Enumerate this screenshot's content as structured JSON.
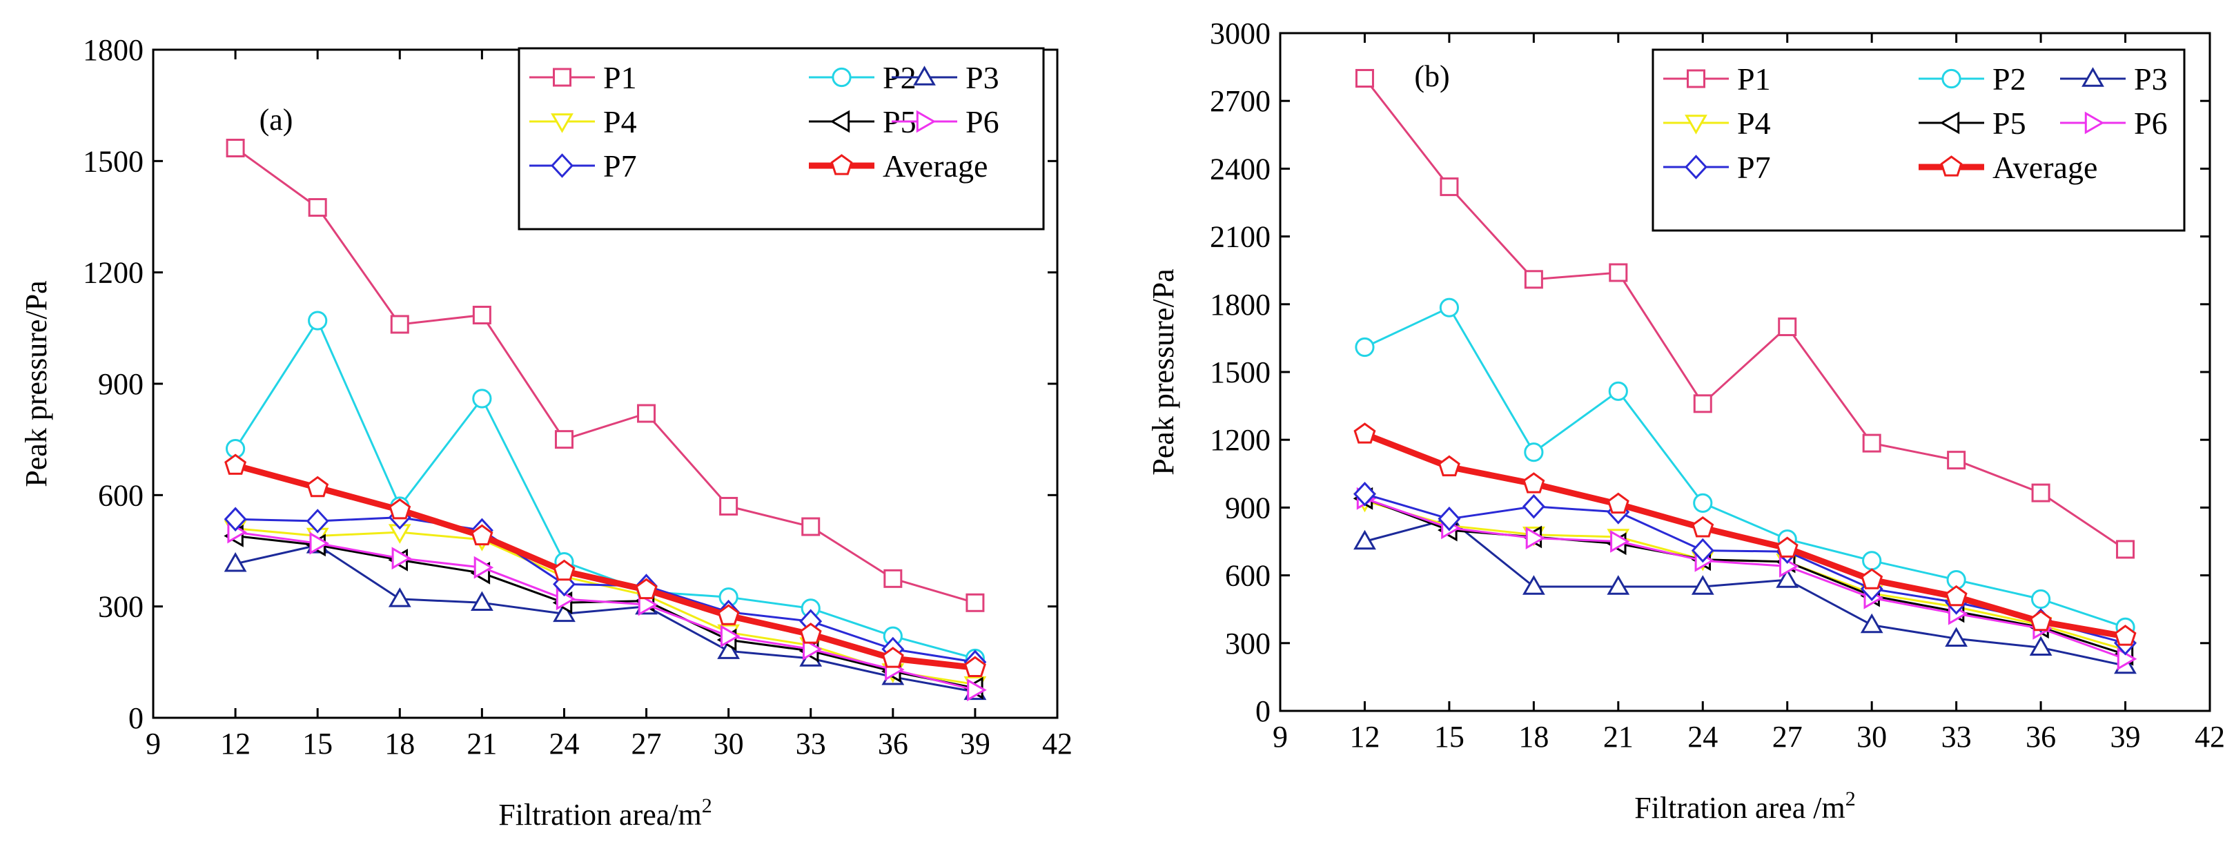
{
  "chart_data": [
    {
      "type": "line",
      "panel_label": "(a)",
      "xlabel": "Filtration area/m",
      "xlabel_sup": "2",
      "ylabel": "Peak pressure/Pa",
      "xlim": [
        9,
        42
      ],
      "ylim": [
        0,
        1800
      ],
      "xticks": [
        "9",
        "12",
        "15",
        "18",
        "21",
        "24",
        "27",
        "30",
        "33",
        "36",
        "39",
        "42"
      ],
      "yticks": [
        "0",
        "300",
        "600",
        "900",
        "1200",
        "1500",
        "1800"
      ],
      "legend_position": "top-right",
      "x": [
        12,
        15,
        18,
        21,
        24,
        27,
        30,
        33,
        36,
        39
      ],
      "series": [
        {
          "name": "P1",
          "color": "#e0407a",
          "marker": "square",
          "values": [
            1535,
            1375,
            1060,
            1085,
            750,
            820,
            570,
            515,
            375,
            310
          ]
        },
        {
          "name": "P2",
          "color": "#22d4e6",
          "marker": "circle",
          "values": [
            725,
            1070,
            570,
            860,
            420,
            340,
            325,
            295,
            220,
            160
          ]
        },
        {
          "name": "P3",
          "color": "#1c2a9a",
          "marker": "triangle-up",
          "values": [
            415,
            465,
            320,
            310,
            280,
            300,
            180,
            160,
            110,
            70
          ]
        },
        {
          "name": "P4",
          "color": "#f2ec14",
          "marker": "triangle-down",
          "values": [
            510,
            490,
            500,
            480,
            380,
            330,
            230,
            195,
            125,
            90
          ]
        },
        {
          "name": "P5",
          "color": "#000000",
          "marker": "triangle-left",
          "values": [
            490,
            465,
            425,
            390,
            310,
            315,
            210,
            180,
            125,
            80
          ]
        },
        {
          "name": "P6",
          "color": "#ee33ee",
          "marker": "triangle-right",
          "values": [
            500,
            470,
            430,
            405,
            320,
            305,
            220,
            185,
            130,
            75
          ]
        },
        {
          "name": "P7",
          "color": "#2a2ad6",
          "marker": "diamond",
          "values": [
            535,
            530,
            540,
            505,
            360,
            355,
            285,
            260,
            185,
            150
          ]
        },
        {
          "name": "Average",
          "color": "#ee1c1c",
          "marker": "pentagon",
          "thick": true,
          "values": [
            680,
            620,
            560,
            490,
            395,
            345,
            275,
            225,
            160,
            135
          ]
        }
      ]
    },
    {
      "type": "line",
      "panel_label": "(b)",
      "xlabel": "Filtration area /m",
      "xlabel_sup": "2",
      "ylabel": "Peak pressure/Pa",
      "xlim": [
        9,
        42
      ],
      "ylim": [
        0,
        3000
      ],
      "xticks": [
        "9",
        "12",
        "15",
        "18",
        "21",
        "24",
        "27",
        "30",
        "33",
        "36",
        "39",
        "42"
      ],
      "yticks": [
        "0",
        "300",
        "600",
        "900",
        "1200",
        "1500",
        "1800",
        "2100",
        "2400",
        "2700",
        "3000"
      ],
      "legend_position": "top-right",
      "x": [
        12,
        15,
        18,
        21,
        24,
        27,
        30,
        33,
        36,
        39
      ],
      "series": [
        {
          "name": "P1",
          "color": "#e0407a",
          "marker": "square",
          "values": [
            2800,
            2320,
            1910,
            1940,
            1360,
            1700,
            1185,
            1110,
            965,
            715
          ]
        },
        {
          "name": "P2",
          "color": "#22d4e6",
          "marker": "circle",
          "values": [
            1610,
            1785,
            1145,
            1415,
            920,
            760,
            665,
            580,
            495,
            370
          ]
        },
        {
          "name": "P3",
          "color": "#1c2a9a",
          "marker": "triangle-up",
          "values": [
            750,
            850,
            550,
            550,
            550,
            580,
            380,
            320,
            280,
            200
          ]
        },
        {
          "name": "P4",
          "color": "#f2ec14",
          "marker": "triangle-down",
          "values": [
            930,
            820,
            780,
            770,
            670,
            660,
            520,
            460,
            380,
            270
          ]
        },
        {
          "name": "P5",
          "color": "#000000",
          "marker": "triangle-left",
          "values": [
            940,
            800,
            770,
            740,
            670,
            660,
            510,
            440,
            370,
            250
          ]
        },
        {
          "name": "P6",
          "color": "#ee33ee",
          "marker": "triangle-right",
          "values": [
            940,
            810,
            765,
            750,
            665,
            640,
            500,
            430,
            365,
            230
          ]
        },
        {
          "name": "P7",
          "color": "#2a2ad6",
          "marker": "diamond",
          "values": [
            960,
            850,
            905,
            880,
            710,
            705,
            540,
            480,
            400,
            300
          ]
        },
        {
          "name": "Average",
          "color": "#ee1c1c",
          "marker": "pentagon",
          "thick": true,
          "values": [
            1225,
            1080,
            1005,
            915,
            810,
            720,
            580,
            505,
            395,
            330
          ]
        }
      ]
    }
  ]
}
